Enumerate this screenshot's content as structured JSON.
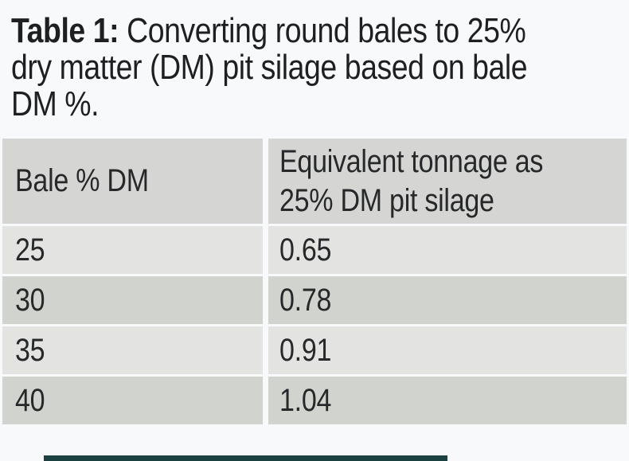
{
  "page": {
    "background": "#f8f9fa"
  },
  "caption": {
    "bold_prefix": "Table 1:",
    "line1_rest": " Converting round bales to 25%",
    "line2": "dry matter (DM) pit silage based on bale",
    "line3": "DM %.",
    "full_text": "Table 1: Converting round bales to 25% dry matter (DM) pit silage based on bale DM %."
  },
  "table": {
    "columns": [
      "Bale % DM",
      "Equivalent tonnage as 25% DM pit silage"
    ],
    "rows": [
      [
        "25",
        "0.65"
      ],
      [
        "30",
        "0.78"
      ],
      [
        "35",
        "0.91"
      ],
      [
        "40",
        "1.04"
      ]
    ],
    "colors": {
      "header_bg": "#d5d6d3",
      "row_light": "#e3e4e2",
      "row_dark": "#d1d4ce",
      "text": "#26282a"
    }
  },
  "footer": {
    "accent_bar_color": "#1a4140"
  },
  "chart_data": {
    "type": "table",
    "title": "Table 1: Converting round bales to 25% dry matter (DM) pit silage based on bale DM %.",
    "columns": [
      "Bale % DM",
      "Equivalent tonnage as 25% DM pit silage"
    ],
    "rows": [
      [
        25,
        0.65
      ],
      [
        30,
        0.78
      ],
      [
        35,
        0.91
      ],
      [
        40,
        1.04
      ]
    ]
  }
}
